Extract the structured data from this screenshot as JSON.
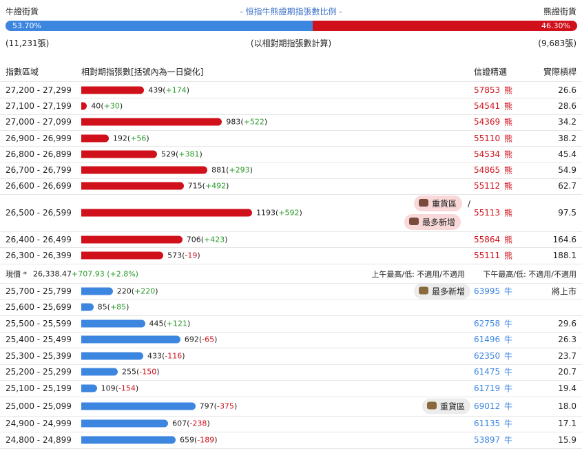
{
  "header": {
    "left": "牛證街貨",
    "title": "- 恒指牛熊證期指張數比例 -",
    "right": "熊證街貨",
    "bull_ratio": {
      "value": 53.7,
      "label": "53.70%"
    },
    "bear_ratio": {
      "value": 46.3,
      "label": "46.30%"
    },
    "bull_count": "(11,231張)",
    "note": "(以相對期指張數計算)",
    "bear_count": "(9,683張)"
  },
  "columns": [
    "指數區域",
    "相對期指張數[括號內為一日變化]",
    "信證精選",
    "實際槓桿"
  ],
  "bear_rows": [
    {
      "range": "27,200 - 27,299",
      "count": 439,
      "change": "+174",
      "code": "57853",
      "unit": "熊",
      "leverage": "26.6"
    },
    {
      "range": "27,100 - 27,199",
      "count": 40,
      "change": "+30",
      "code": "54541",
      "unit": "熊",
      "leverage": "28.6"
    },
    {
      "range": "27,000 - 27,099",
      "count": 983,
      "change": "+522",
      "code": "54369",
      "unit": "熊",
      "leverage": "34.2"
    },
    {
      "range": "26,900 - 26,999",
      "count": 192,
      "change": "+56",
      "code": "55110",
      "unit": "熊",
      "leverage": "38.2"
    },
    {
      "range": "26,800 - 26,899",
      "count": 529,
      "change": "+381",
      "code": "54534",
      "unit": "熊",
      "leverage": "45.4"
    },
    {
      "range": "26,700 - 26,799",
      "count": 881,
      "change": "+293",
      "code": "54865",
      "unit": "熊",
      "leverage": "54.9"
    },
    {
      "range": "26,600 - 26,699",
      "count": 715,
      "change": "+492",
      "code": "55112",
      "unit": "熊",
      "leverage": "62.7"
    },
    {
      "range": "26,500 - 26,599",
      "count": 1193,
      "change": "+592",
      "code": "55113",
      "unit": "熊",
      "leverage": "97.5",
      "tags": [
        "重貨區",
        "最多新增"
      ],
      "tag_sep": "/"
    },
    {
      "range": "26,400 - 26,499",
      "count": 706,
      "change": "+423",
      "code": "55864",
      "unit": "熊",
      "leverage": "164.6"
    },
    {
      "range": "26,300 - 26,399",
      "count": 573,
      "change": "-19",
      "code": "55111",
      "unit": "熊",
      "leverage": "188.1"
    }
  ],
  "current": {
    "label": "現價 *",
    "price": "26,338.47",
    "change": "+707.93 (+2.8%)",
    "am": "上午最高/低: 不適用/不適用",
    "pm": "下午最高/低: 不適用/不適用"
  },
  "bull_rows": [
    {
      "range": "25,700 - 25,799",
      "count": 220,
      "change": "+220",
      "code": "63995",
      "unit": "牛",
      "leverage": "將上市",
      "tags": [
        "最多新增"
      ]
    },
    {
      "range": "25,600 - 25,699",
      "count": 85,
      "change": "+85"
    },
    {
      "range": "25,500 - 25,599",
      "count": 445,
      "change": "+121",
      "code": "62758",
      "unit": "牛",
      "leverage": "29.6"
    },
    {
      "range": "25,400 - 25,499",
      "count": 692,
      "change": "-65",
      "code": "61496",
      "unit": "牛",
      "leverage": "26.3"
    },
    {
      "range": "25,300 - 25,399",
      "count": 433,
      "change": "-116",
      "code": "62350",
      "unit": "牛",
      "leverage": "23.7"
    },
    {
      "range": "25,200 - 25,299",
      "count": 255,
      "change": "-150",
      "code": "61475",
      "unit": "牛",
      "leverage": "20.7"
    },
    {
      "range": "25,100 - 25,199",
      "count": 109,
      "change": "-154",
      "code": "61719",
      "unit": "牛",
      "leverage": "19.4"
    },
    {
      "range": "25,000 - 25,099",
      "count": 797,
      "change": "-375",
      "code": "69012",
      "unit": "牛",
      "leverage": "18.0",
      "tags": [
        "重貨區"
      ]
    },
    {
      "range": "24,900 - 24,999",
      "count": 607,
      "change": "-238",
      "code": "61135",
      "unit": "牛",
      "leverage": "17.1"
    },
    {
      "range": "24,800 - 24,899",
      "count": 659,
      "change": "-189",
      "code": "53897",
      "unit": "牛",
      "leverage": "15.9"
    }
  ]
}
